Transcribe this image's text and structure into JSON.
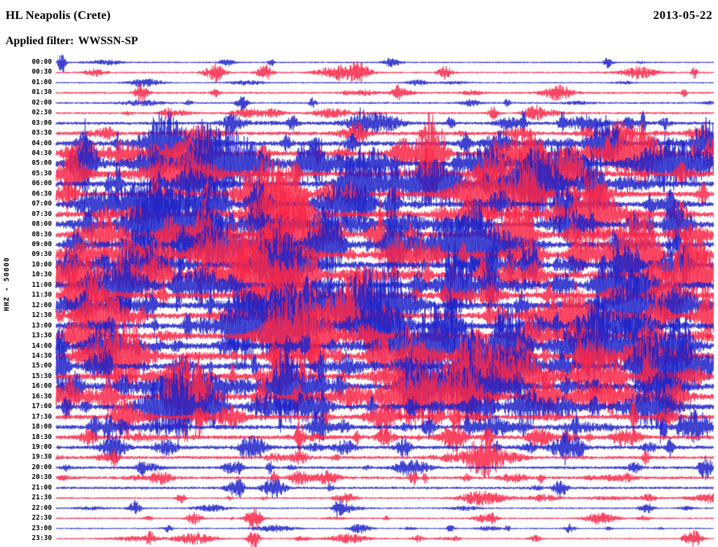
{
  "header": {
    "station": "HL Neapolis (Crete)",
    "date": "2013-05-22",
    "filter_label": "Applied filter:",
    "filter_value": "WWSSN-SP"
  },
  "y_axis_label": "HHZ - 50000",
  "colors": {
    "trace_blue": "#2023c8",
    "trace_red": "#f7284a",
    "text": "#000000",
    "background": "#ffffff"
  },
  "chart_data": {
    "type": "line",
    "subtype": "helicorder-seismogram",
    "title": "HL Neapolis (Crete) 2013-05-22 HHZ daily helicorder, WWSSN-SP filter, gain 50000",
    "xlabel": "",
    "ylabel": "HHZ - 50000",
    "minutes_per_row": 30,
    "rows_total": 48,
    "legend": "alternating blue/red traces per 30-minute segment; activity is relative amplitude 0-1; events are [x_fraction_of_row, peak_amplitude_px]",
    "rows": [
      {
        "time": "00:00",
        "color": "blue",
        "activity": 0.1,
        "events": [
          [
            0.009,
            16
          ],
          [
            0.26,
            5
          ],
          [
            0.51,
            6
          ],
          [
            0.84,
            7
          ]
        ]
      },
      {
        "time": "00:30",
        "color": "red",
        "activity": 0.12,
        "events": [
          [
            0.06,
            5
          ],
          [
            0.24,
            9
          ],
          [
            0.46,
            11
          ]
        ]
      },
      {
        "time": "01:00",
        "color": "blue",
        "activity": 0.08,
        "events": [
          [
            0.55,
            4
          ]
        ]
      },
      {
        "time": "01:30",
        "color": "red",
        "activity": 0.18,
        "events": [
          [
            0.13,
            15
          ],
          [
            0.52,
            6
          ]
        ]
      },
      {
        "time": "02:00",
        "color": "blue",
        "activity": 0.15,
        "events": [
          [
            0.39,
            7
          ],
          [
            0.63,
            5
          ]
        ]
      },
      {
        "time": "02:30",
        "color": "red",
        "activity": 0.2,
        "events": [
          [
            0.17,
            7
          ],
          [
            0.33,
            6
          ],
          [
            0.73,
            5
          ]
        ]
      },
      {
        "time": "03:00",
        "color": "blue",
        "activity": 0.35,
        "events": [
          [
            0.36,
            11
          ],
          [
            0.6,
            9
          ]
        ]
      },
      {
        "time": "03:30",
        "color": "red",
        "activity": 0.45,
        "events": [
          [
            0.08,
            9
          ],
          [
            0.45,
            10
          ],
          [
            0.81,
            8
          ]
        ]
      },
      {
        "time": "04:00",
        "color": "blue",
        "activity": 0.65,
        "events": [
          [
            0.04,
            14
          ],
          [
            0.35,
            12
          ],
          [
            0.68,
            10
          ]
        ]
      },
      {
        "time": "04:30",
        "color": "red",
        "activity": 0.7,
        "events": [
          [
            0.1,
            13
          ],
          [
            0.52,
            14
          ],
          [
            0.9,
            12
          ]
        ]
      },
      {
        "time": "05:00",
        "color": "blue",
        "activity": 0.75,
        "events": [
          [
            0.05,
            16
          ],
          [
            0.4,
            15
          ],
          [
            0.76,
            13
          ]
        ]
      },
      {
        "time": "05:30",
        "color": "red",
        "activity": 0.7,
        "events": [
          [
            0.2,
            14
          ],
          [
            0.57,
            13
          ],
          [
            0.95,
            15
          ]
        ]
      },
      {
        "time": "06:00",
        "color": "blue",
        "activity": 0.75,
        "events": [
          [
            0.08,
            15
          ],
          [
            0.44,
            14
          ],
          [
            0.7,
            12
          ]
        ]
      },
      {
        "time": "06:30",
        "color": "red",
        "activity": 0.7,
        "events": [
          [
            0.15,
            13
          ],
          [
            0.36,
            16
          ],
          [
            0.83,
            12
          ]
        ]
      },
      {
        "time": "07:00",
        "color": "blue",
        "activity": 0.75,
        "events": [
          [
            0.06,
            14
          ],
          [
            0.47,
            13
          ],
          [
            0.78,
            15
          ]
        ]
      },
      {
        "time": "07:30",
        "color": "red",
        "activity": 0.8,
        "events": [
          [
            0.12,
            16
          ],
          [
            0.38,
            18
          ],
          [
            0.66,
            13
          ]
        ]
      },
      {
        "time": "08:00",
        "color": "blue",
        "activity": 0.8,
        "events": [
          [
            0.05,
            15
          ],
          [
            0.53,
            14
          ],
          [
            0.88,
            16
          ]
        ]
      },
      {
        "time": "08:30",
        "color": "red",
        "activity": 0.85,
        "events": [
          [
            0.1,
            14
          ],
          [
            0.49,
            22
          ],
          [
            0.72,
            13
          ]
        ]
      },
      {
        "time": "09:00",
        "color": "blue",
        "activity": 0.85,
        "events": [
          [
            0.03,
            18
          ],
          [
            0.42,
            15
          ],
          [
            0.64,
            14
          ]
        ]
      },
      {
        "time": "09:30",
        "color": "red",
        "activity": 0.8,
        "events": [
          [
            0.22,
            16
          ],
          [
            0.58,
            14
          ],
          [
            0.91,
            13
          ]
        ]
      },
      {
        "time": "10:00",
        "color": "blue",
        "activity": 0.9,
        "events": [
          [
            0.02,
            20
          ],
          [
            0.35,
            17
          ],
          [
            0.69,
            18
          ]
        ]
      },
      {
        "time": "10:30",
        "color": "red",
        "activity": 0.95,
        "events": [
          [
            0.1,
            24
          ],
          [
            0.3,
            21
          ],
          [
            0.73,
            20
          ]
        ]
      },
      {
        "time": "11:00",
        "color": "blue",
        "activity": 1.0,
        "events": [
          [
            0.1,
            28
          ],
          [
            0.55,
            21
          ],
          [
            0.85,
            17
          ]
        ]
      },
      {
        "time": "11:30",
        "color": "red",
        "activity": 0.9,
        "events": [
          [
            0.05,
            20
          ],
          [
            0.47,
            18
          ],
          [
            0.75,
            16
          ]
        ]
      },
      {
        "time": "12:00",
        "color": "blue",
        "activity": 0.85,
        "events": [
          [
            0.14,
            17
          ],
          [
            0.52,
            16
          ],
          [
            0.88,
            15
          ]
        ]
      },
      {
        "time": "12:30",
        "color": "red",
        "activity": 0.8,
        "events": [
          [
            0.07,
            16
          ],
          [
            0.33,
            18
          ],
          [
            0.67,
            14
          ]
        ]
      },
      {
        "time": "13:00",
        "color": "blue",
        "activity": 0.85,
        "events": [
          [
            0.2,
            18
          ],
          [
            0.49,
            16
          ],
          [
            0.8,
            17
          ]
        ]
      },
      {
        "time": "13:30",
        "color": "red",
        "activity": 0.8,
        "events": [
          [
            0.04,
            17
          ],
          [
            0.41,
            15
          ],
          [
            0.72,
            16
          ]
        ]
      },
      {
        "time": "14:00",
        "color": "blue",
        "activity": 0.85,
        "events": [
          [
            0.005,
            24
          ],
          [
            0.38,
            26
          ],
          [
            0.62,
            16
          ]
        ]
      },
      {
        "time": "14:30",
        "color": "red",
        "activity": 0.9,
        "events": [
          [
            0.12,
            20
          ],
          [
            0.5,
            17
          ],
          [
            0.83,
            18
          ]
        ]
      },
      {
        "time": "15:00",
        "color": "blue",
        "activity": 0.8,
        "events": [
          [
            0.06,
            17
          ],
          [
            0.44,
            16
          ],
          [
            0.77,
            15
          ]
        ]
      },
      {
        "time": "15:30",
        "color": "red",
        "activity": 0.85,
        "events": [
          [
            0.18,
            18
          ],
          [
            0.55,
            17
          ],
          [
            0.9,
            16
          ]
        ]
      },
      {
        "time": "16:00",
        "color": "blue",
        "activity": 0.9,
        "events": [
          [
            0.03,
            19
          ],
          [
            0.36,
            18
          ],
          [
            0.7,
            17
          ]
        ]
      },
      {
        "time": "16:30",
        "color": "red",
        "activity": 0.85,
        "events": [
          [
            0.08,
            26
          ],
          [
            0.45,
            16
          ],
          [
            0.75,
            20
          ]
        ]
      },
      {
        "time": "17:00",
        "color": "blue",
        "activity": 0.7,
        "events": [
          [
            0.15,
            15
          ],
          [
            0.48,
            14
          ],
          [
            0.82,
            13
          ]
        ]
      },
      {
        "time": "17:30",
        "color": "red",
        "activity": 0.6,
        "events": [
          [
            0.22,
            13
          ],
          [
            0.58,
            12
          ],
          [
            0.93,
            11
          ]
        ]
      },
      {
        "time": "18:00",
        "color": "blue",
        "activity": 0.55,
        "events": [
          [
            0.1,
            12
          ],
          [
            0.4,
            13
          ],
          [
            0.71,
            11
          ]
        ]
      },
      {
        "time": "18:30",
        "color": "red",
        "activity": 0.5,
        "events": [
          [
            0.05,
            11
          ],
          [
            0.5,
            12
          ],
          [
            0.86,
            10
          ]
        ]
      },
      {
        "time": "19:00",
        "color": "blue",
        "activity": 0.45,
        "events": [
          [
            0.17,
            11
          ],
          [
            0.44,
            10
          ],
          [
            0.76,
            9
          ]
        ]
      },
      {
        "time": "19:30",
        "color": "red",
        "activity": 0.35,
        "events": [
          [
            0.09,
            9
          ],
          [
            0.37,
            10
          ],
          [
            0.64,
            8
          ]
        ]
      },
      {
        "time": "20:00",
        "color": "blue",
        "activity": 0.3,
        "events": [
          [
            0.13,
            8
          ],
          [
            0.55,
            9
          ],
          [
            0.88,
            7
          ]
        ]
      },
      {
        "time": "20:30",
        "color": "red",
        "activity": 0.3,
        "events": [
          [
            0.16,
            9
          ],
          [
            0.37,
            11
          ],
          [
            0.7,
            6
          ]
        ]
      },
      {
        "time": "21:00",
        "color": "blue",
        "activity": 0.25,
        "events": [
          [
            0.33,
            8
          ],
          [
            0.77,
            9
          ]
        ]
      },
      {
        "time": "21:30",
        "color": "red",
        "activity": 0.15,
        "events": [
          [
            0.19,
            7
          ],
          [
            0.44,
            7
          ],
          [
            0.9,
            5
          ]
        ]
      },
      {
        "time": "22:00",
        "color": "blue",
        "activity": 0.12,
        "events": [
          [
            0.12,
            11
          ],
          [
            0.43,
            13
          ],
          [
            0.9,
            7
          ]
        ]
      },
      {
        "time": "22:30",
        "color": "red",
        "activity": 0.12,
        "events": [
          [
            0.3,
            17
          ],
          [
            0.65,
            5
          ]
        ]
      },
      {
        "time": "23:00",
        "color": "blue",
        "activity": 0.08,
        "events": [
          [
            0.17,
            5
          ],
          [
            0.6,
            4
          ]
        ]
      },
      {
        "time": "23:30",
        "color": "red",
        "activity": 0.1,
        "events": [
          [
            0.3,
            15
          ],
          [
            0.55,
            5
          ],
          [
            0.97,
            13
          ]
        ]
      }
    ]
  }
}
